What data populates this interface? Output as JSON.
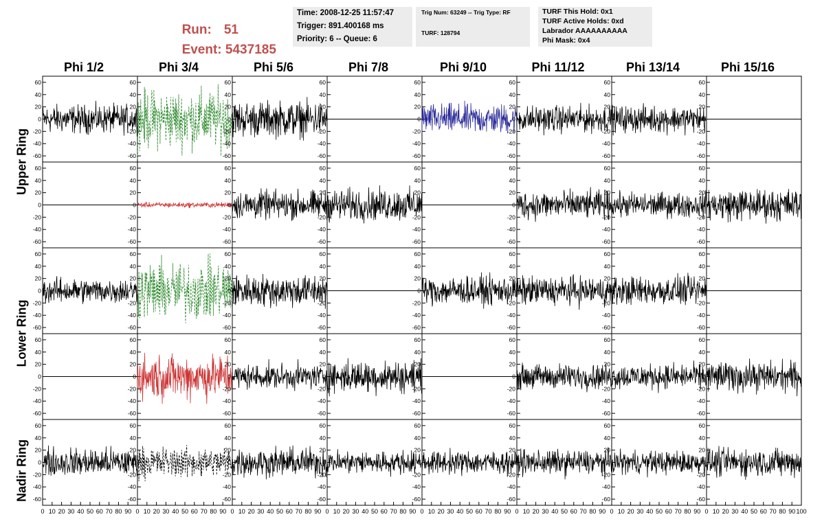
{
  "header": {
    "run_label": "Run:",
    "run_value": "51",
    "event_label": "Event:",
    "event_value": "5437185",
    "box1": [
      "Time: 2008-12-25 11:57:47",
      "Trigger: 891.400168 ms",
      "Priority: 6 -- Queue: 6"
    ],
    "box2": [
      "Trig Num: 63249 -- Trig Type: RF",
      "TURF: 128794"
    ],
    "box3": [
      "TURF This Hold: 0x1",
      "TURF Active Holds: 0xd",
      "Labrador AAAAAAAAAA",
      "Phi Mask: 0x4"
    ]
  },
  "chart_data": {
    "type": "line",
    "columns": [
      "Phi 1/2",
      "Phi 3/4",
      "Phi 5/6",
      "Phi 7/8",
      "Phi 9/10",
      "Phi 11/12",
      "Phi 13/14",
      "Phi 15/16"
    ],
    "ring_labels": [
      "Upper Ring",
      "Lower Ring",
      "Nadir Ring"
    ],
    "ylim": [
      -70,
      70
    ],
    "yticks": [
      -60,
      -40,
      -20,
      0,
      20,
      40,
      60
    ],
    "xlim": [
      0,
      100
    ],
    "xticks": [
      0,
      10,
      20,
      30,
      40,
      50,
      60,
      70,
      80,
      90,
      100
    ],
    "xtick_labels": [
      "0",
      "10",
      "20",
      "30",
      "40",
      "50",
      "60",
      "70",
      "80",
      "90",
      "100"
    ],
    "colors": {
      "black": "#000000",
      "green": "#2e8b2e",
      "blue": "#2b2b9a",
      "red": "#cc3333"
    },
    "panels": [
      [
        {
          "style": "black",
          "amp": 16
        },
        {
          "style": "green-dashed",
          "amp": 33
        },
        {
          "style": "black",
          "amp": 20
        },
        {
          "style": "flat"
        },
        {
          "style": "blue",
          "amp": 17
        },
        {
          "style": "black",
          "amp": 15
        },
        {
          "style": "black",
          "amp": 15
        },
        {
          "style": "flat"
        }
      ],
      [
        {
          "style": "flat"
        },
        {
          "style": "red",
          "amp": 3
        },
        {
          "style": "black",
          "amp": 16
        },
        {
          "style": "black",
          "amp": 18
        },
        {
          "style": "flat"
        },
        {
          "style": "black",
          "amp": 16
        },
        {
          "style": "black",
          "amp": 14
        },
        {
          "style": "black",
          "amp": 18
        }
      ],
      [
        {
          "style": "black",
          "amp": 14
        },
        {
          "style": "green-dashed",
          "amp": 33
        },
        {
          "style": "black",
          "amp": 18
        },
        {
          "style": "flat"
        },
        {
          "style": "black",
          "amp": 16
        },
        {
          "style": "black",
          "amp": 16
        },
        {
          "style": "black",
          "amp": 16
        },
        {
          "style": "flat"
        }
      ],
      [
        {
          "style": "flat"
        },
        {
          "style": "red",
          "amp": 25
        },
        {
          "style": "black",
          "amp": 14
        },
        {
          "style": "black",
          "amp": 18
        },
        {
          "style": "flat"
        },
        {
          "style": "black",
          "amp": 14
        },
        {
          "style": "black",
          "amp": 14
        },
        {
          "style": "black",
          "amp": 17
        }
      ],
      [
        {
          "style": "black",
          "amp": 16
        },
        {
          "style": "black-dashed",
          "amp": 17
        },
        {
          "style": "black",
          "amp": 16
        },
        {
          "style": "black",
          "amp": 13
        },
        {
          "style": "black",
          "amp": 13
        },
        {
          "style": "black",
          "amp": 14
        },
        {
          "style": "black",
          "amp": 13
        },
        {
          "style": "black",
          "amp": 16
        }
      ]
    ]
  }
}
